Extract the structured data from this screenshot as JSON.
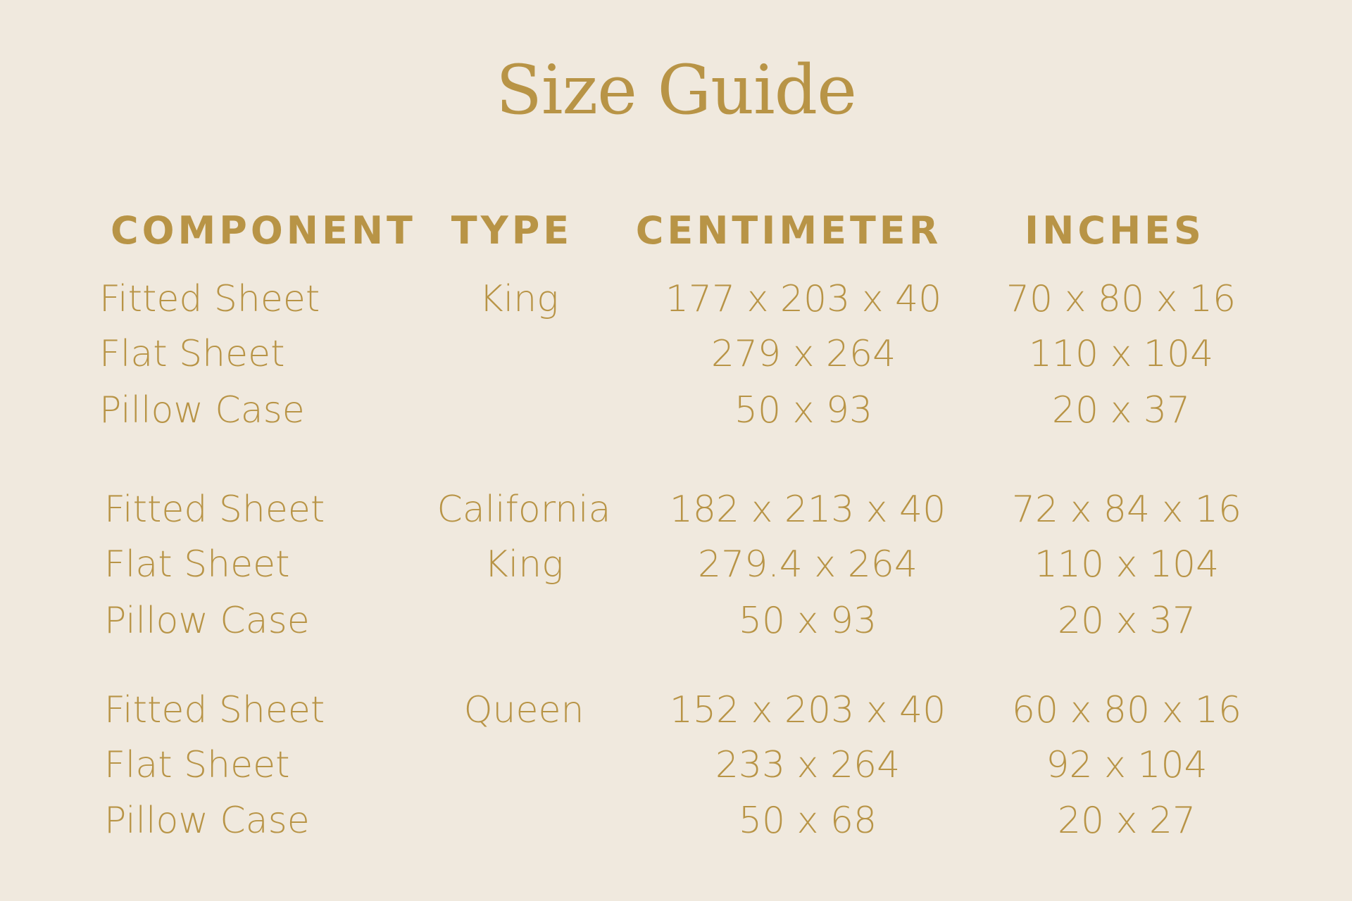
{
  "title": "Size Guide",
  "headers": {
    "component": "COMPONENT",
    "type": "TYPE",
    "centimeter": "CENTIMETER",
    "inches": "INCHES"
  },
  "groups": [
    {
      "type_lines": [
        "King",
        ""
      ],
      "rows": [
        {
          "component": "Fitted Sheet",
          "cm": "177 x 203 x 40",
          "in": "70 x 80 x 16"
        },
        {
          "component": "Flat Sheet",
          "cm": "279 x 264",
          "in": "110 x 104"
        },
        {
          "component": "Pillow Case",
          "cm": "50 x 93",
          "in": "20 x 37"
        }
      ]
    },
    {
      "type_lines": [
        "California",
        "King"
      ],
      "rows": [
        {
          "component": "Fitted Sheet",
          "cm": "182 x 213 x 40",
          "in": "72 x 84 x 16"
        },
        {
          "component": "Flat Sheet",
          "cm": "279.4 x 264",
          "in": "110 x 104"
        },
        {
          "component": "Pillow Case",
          "cm": "50 x 93",
          "in": "20 x 37"
        }
      ]
    },
    {
      "type_lines": [
        "Queen",
        ""
      ],
      "rows": [
        {
          "component": "Fitted Sheet",
          "cm": "152 x 203 x 40",
          "in": "60 x 80 x 16"
        },
        {
          "component": "Flat Sheet",
          "cm": "233 x 264",
          "in": "92 x 104"
        },
        {
          "component": "Pillow Case",
          "cm": "50 x 68",
          "in": "20 x 27"
        }
      ]
    }
  ],
  "colors": {
    "background": "#f0e9de",
    "accent": "#b89446"
  }
}
